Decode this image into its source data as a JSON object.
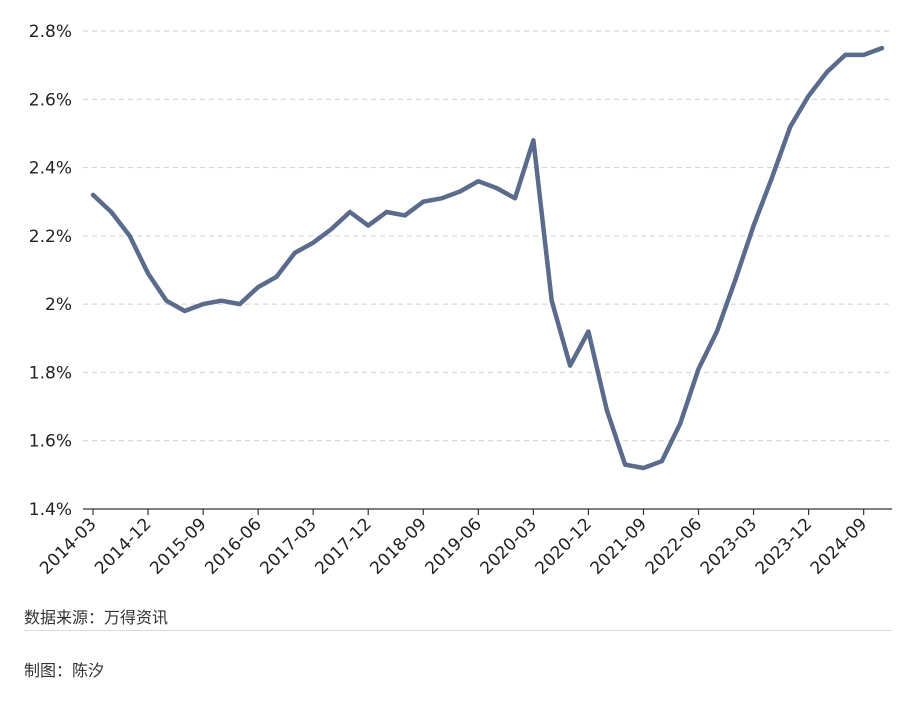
{
  "chart_data": {
    "type": "line",
    "title": "",
    "xlabel": "",
    "ylabel": "",
    "ylim": [
      1.4,
      2.8
    ],
    "y_ticks": [
      "1.4%",
      "1.6%",
      "1.8%",
      "2%",
      "2.2%",
      "2.4%",
      "2.6%",
      "2.8%"
    ],
    "y_tick_values": [
      1.4,
      1.6,
      1.8,
      2.0,
      2.2,
      2.4,
      2.6,
      2.8
    ],
    "x_ticks": [
      "2014-03",
      "2014-12",
      "2015-09",
      "2016-06",
      "2017-03",
      "2017-12",
      "2018-09",
      "2019-06",
      "2020-03",
      "2020-12",
      "2021-09",
      "2022-06",
      "2023-03",
      "2023-12",
      "2024-09"
    ],
    "grid": "horizontal dashed",
    "legend": "none",
    "line_color": "#5a6b8c",
    "series": [
      {
        "x": [
          "2014-03",
          "2014-06",
          "2014-09",
          "2014-12",
          "2015-03",
          "2015-06",
          "2015-09",
          "2015-12",
          "2016-03",
          "2016-06",
          "2016-09",
          "2016-12",
          "2017-03",
          "2017-06",
          "2017-09",
          "2017-12",
          "2018-03",
          "2018-06",
          "2018-09",
          "2018-12",
          "2019-03",
          "2019-06",
          "2019-09",
          "2019-12",
          "2020-03",
          "2020-06",
          "2020-09",
          "2020-12",
          "2021-03",
          "2021-06",
          "2021-09",
          "2021-12",
          "2022-03",
          "2022-06",
          "2022-09",
          "2022-12",
          "2023-03",
          "2023-06",
          "2023-09",
          "2023-12",
          "2024-03",
          "2024-06",
          "2024-09",
          "2024-12"
        ],
        "values": [
          2.32,
          2.27,
          2.2,
          2.09,
          2.01,
          1.98,
          2.0,
          2.01,
          2.0,
          2.05,
          2.08,
          2.15,
          2.18,
          2.22,
          2.27,
          2.23,
          2.27,
          2.26,
          2.3,
          2.31,
          2.33,
          2.36,
          2.34,
          2.31,
          2.48,
          2.01,
          1.82,
          1.92,
          1.69,
          1.53,
          1.52,
          1.54,
          1.65,
          1.81,
          1.92,
          2.07,
          2.23,
          2.37,
          2.52,
          2.61,
          2.68,
          2.73,
          2.73,
          2.75
        ]
      }
    ]
  },
  "footer": {
    "source": "数据来源：万得资讯",
    "author": "制图：陈汐"
  }
}
